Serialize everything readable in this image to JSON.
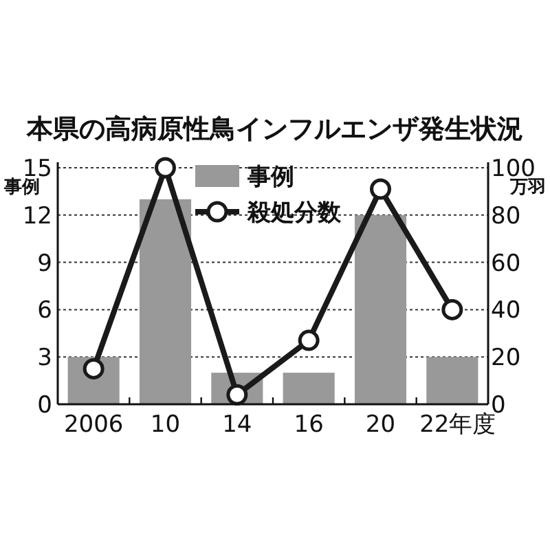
{
  "chart_data": {
    "type": "bar",
    "title": "本県の高病原性鳥インフルエンザ発生状況",
    "categories": [
      "2006",
      "10",
      "14",
      "16",
      "20",
      "22年度"
    ],
    "ylabel": "事例",
    "y2label": "万羽",
    "series": [
      {
        "name": "事例",
        "color": "#999999",
        "values": [
          3,
          13,
          2,
          2,
          12,
          3
        ]
      },
      {
        "name": "殺処分数",
        "type": "line",
        "axis": "y2",
        "color": "#1a1a1a",
        "marker": "circle",
        "values": [
          15,
          100,
          4,
          27,
          91,
          40
        ]
      }
    ],
    "ylim": [
      0,
      15
    ],
    "yticks": [
      0,
      3,
      6,
      9,
      12,
      15
    ],
    "y2lim": [
      0,
      100
    ],
    "y2ticks": [
      0,
      20,
      40,
      60,
      80,
      100
    ],
    "grid": "y",
    "legend": "top"
  }
}
